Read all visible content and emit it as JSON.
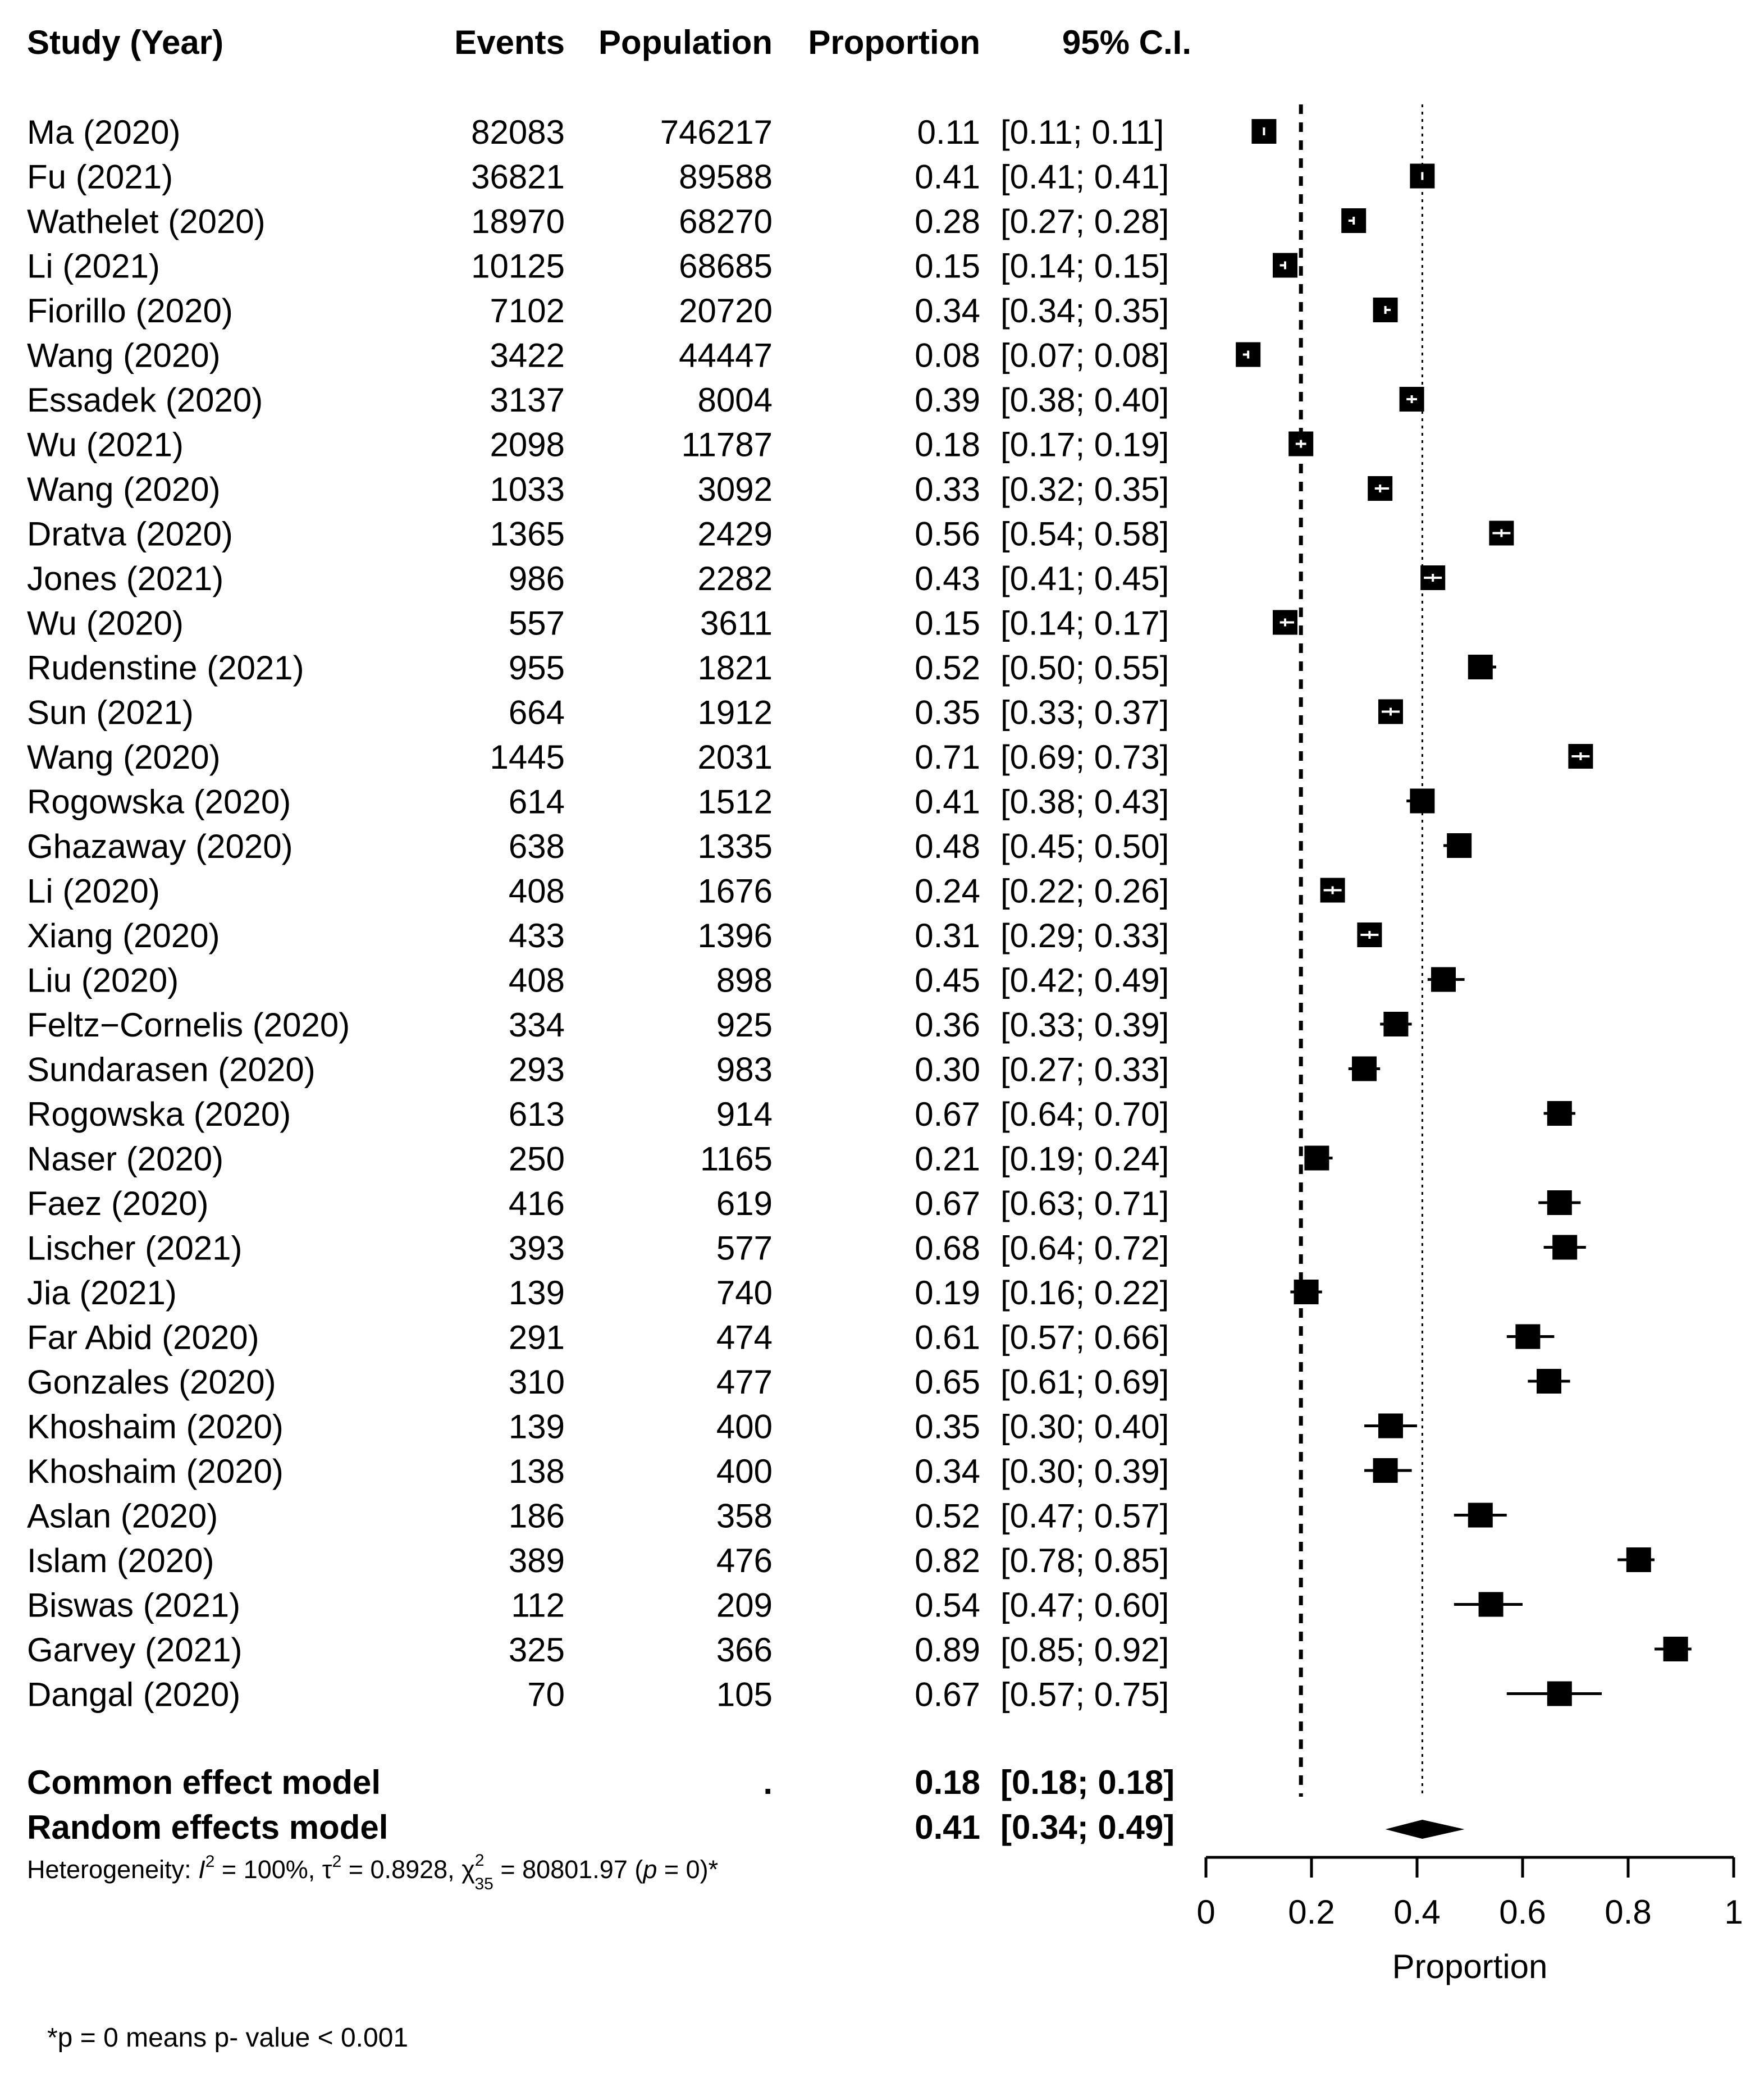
{
  "chart_data": {
    "type": "forest",
    "title": "",
    "columns": {
      "study": "Study (Year)",
      "events": "Events",
      "population": "Population",
      "proportion": "Proportion",
      "ci": "95% C.I."
    },
    "studies": [
      {
        "label": "Ma (2020)",
        "events": "82083",
        "population": "746217",
        "prop": 0.11,
        "lo": 0.11,
        "hi": 0.11,
        "prop_text": "0.11",
        "ci_text": "[0.11; 0.11]",
        "weight": 1
      },
      {
        "label": "Fu (2021)",
        "events": "36821",
        "population": "89588",
        "prop": 0.41,
        "lo": 0.41,
        "hi": 0.41,
        "prop_text": "0.41",
        "ci_text": "[0.41; 0.41]",
        "weight": 1
      },
      {
        "label": "Wathelet (2020)",
        "events": "18970",
        "population": "68270",
        "prop": 0.28,
        "lo": 0.27,
        "hi": 0.28,
        "prop_text": "0.28",
        "ci_text": "[0.27; 0.28]",
        "weight": 1
      },
      {
        "label": "Li (2021)",
        "events": "10125",
        "population": "68685",
        "prop": 0.15,
        "lo": 0.14,
        "hi": 0.15,
        "prop_text": "0.15",
        "ci_text": "[0.14; 0.15]",
        "weight": 1
      },
      {
        "label": "Fiorillo (2020)",
        "events": "7102",
        "population": "20720",
        "prop": 0.34,
        "lo": 0.34,
        "hi": 0.35,
        "prop_text": "0.34",
        "ci_text": "[0.34; 0.35]",
        "weight": 1
      },
      {
        "label": "Wang (2020)",
        "events": "3422",
        "population": "44447",
        "prop": 0.08,
        "lo": 0.07,
        "hi": 0.08,
        "prop_text": "0.08",
        "ci_text": "[0.07; 0.08]",
        "weight": 1
      },
      {
        "label": "Essadek (2020)",
        "events": "3137",
        "population": "8004",
        "prop": 0.39,
        "lo": 0.38,
        "hi": 0.4,
        "prop_text": "0.39",
        "ci_text": "[0.38; 0.40]",
        "weight": 1
      },
      {
        "label": "Wu (2021)",
        "events": "2098",
        "population": "11787",
        "prop": 0.18,
        "lo": 0.17,
        "hi": 0.19,
        "prop_text": "0.18",
        "ci_text": "[0.17; 0.19]",
        "weight": 1
      },
      {
        "label": "Wang (2020)",
        "events": "1033",
        "population": "3092",
        "prop": 0.33,
        "lo": 0.32,
        "hi": 0.35,
        "prop_text": "0.33",
        "ci_text": "[0.32; 0.35]",
        "weight": 1
      },
      {
        "label": "Dratva (2020)",
        "events": "1365",
        "population": "2429",
        "prop": 0.56,
        "lo": 0.54,
        "hi": 0.58,
        "prop_text": "0.56",
        "ci_text": "[0.54; 0.58]",
        "weight": 1
      },
      {
        "label": "Jones (2021)",
        "events": "986",
        "population": "2282",
        "prop": 0.43,
        "lo": 0.41,
        "hi": 0.45,
        "prop_text": "0.43",
        "ci_text": "[0.41; 0.45]",
        "weight": 1
      },
      {
        "label": "Wu (2020)",
        "events": "557",
        "population": "3611",
        "prop": 0.15,
        "lo": 0.14,
        "hi": 0.17,
        "prop_text": "0.15",
        "ci_text": "[0.14; 0.17]",
        "weight": 1
      },
      {
        "label": "Rudenstine (2021)",
        "events": "955",
        "population": "1821",
        "prop": 0.52,
        "lo": 0.5,
        "hi": 0.55,
        "prop_text": "0.52",
        "ci_text": "[0.50; 0.55]",
        "weight": 1
      },
      {
        "label": "Sun (2021)",
        "events": "664",
        "population": "1912",
        "prop": 0.35,
        "lo": 0.33,
        "hi": 0.37,
        "prop_text": "0.35",
        "ci_text": "[0.33; 0.37]",
        "weight": 1
      },
      {
        "label": "Wang (2020)",
        "events": "1445",
        "population": "2031",
        "prop": 0.71,
        "lo": 0.69,
        "hi": 0.73,
        "prop_text": "0.71",
        "ci_text": "[0.69; 0.73]",
        "weight": 1
      },
      {
        "label": "Rogowska (2020)",
        "events": "614",
        "population": "1512",
        "prop": 0.41,
        "lo": 0.38,
        "hi": 0.43,
        "prop_text": "0.41",
        "ci_text": "[0.38; 0.43]",
        "weight": 1
      },
      {
        "label": "Ghazaway (2020)",
        "events": "638",
        "population": "1335",
        "prop": 0.48,
        "lo": 0.45,
        "hi": 0.5,
        "prop_text": "0.48",
        "ci_text": "[0.45; 0.50]",
        "weight": 1
      },
      {
        "label": "Li (2020)",
        "events": "408",
        "population": "1676",
        "prop": 0.24,
        "lo": 0.22,
        "hi": 0.26,
        "prop_text": "0.24",
        "ci_text": "[0.22; 0.26]",
        "weight": 1
      },
      {
        "label": "Xiang (2020)",
        "events": "433",
        "population": "1396",
        "prop": 0.31,
        "lo": 0.29,
        "hi": 0.33,
        "prop_text": "0.31",
        "ci_text": "[0.29; 0.33]",
        "weight": 1
      },
      {
        "label": "Liu (2020)",
        "events": "408",
        "population": "898",
        "prop": 0.45,
        "lo": 0.42,
        "hi": 0.49,
        "prop_text": "0.45",
        "ci_text": "[0.42; 0.49]",
        "weight": 1
      },
      {
        "label": "Feltz−Cornelis (2020)",
        "events": "334",
        "population": "925",
        "prop": 0.36,
        "lo": 0.33,
        "hi": 0.39,
        "prop_text": "0.36",
        "ci_text": "[0.33; 0.39]",
        "weight": 1
      },
      {
        "label": "Sundarasen (2020)",
        "events": "293",
        "population": "983",
        "prop": 0.3,
        "lo": 0.27,
        "hi": 0.33,
        "prop_text": "0.30",
        "ci_text": "[0.27; 0.33]",
        "weight": 1
      },
      {
        "label": "Rogowska (2020)",
        "events": "613",
        "population": "914",
        "prop": 0.67,
        "lo": 0.64,
        "hi": 0.7,
        "prop_text": "0.67",
        "ci_text": "[0.64; 0.70]",
        "weight": 1
      },
      {
        "label": "Naser (2020)",
        "events": "250",
        "population": "1165",
        "prop": 0.21,
        "lo": 0.19,
        "hi": 0.24,
        "prop_text": "0.21",
        "ci_text": "[0.19; 0.24]",
        "weight": 1
      },
      {
        "label": "Faez (2020)",
        "events": "416",
        "population": "619",
        "prop": 0.67,
        "lo": 0.63,
        "hi": 0.71,
        "prop_text": "0.67",
        "ci_text": "[0.63; 0.71]",
        "weight": 1
      },
      {
        "label": "Lischer (2021)",
        "events": "393",
        "population": "577",
        "prop": 0.68,
        "lo": 0.64,
        "hi": 0.72,
        "prop_text": "0.68",
        "ci_text": "[0.64; 0.72]",
        "weight": 1
      },
      {
        "label": "Jia (2021)",
        "events": "139",
        "population": "740",
        "prop": 0.19,
        "lo": 0.16,
        "hi": 0.22,
        "prop_text": "0.19",
        "ci_text": "[0.16; 0.22]",
        "weight": 1
      },
      {
        "label": "Far Abid (2020)",
        "events": "291",
        "population": "474",
        "prop": 0.61,
        "lo": 0.57,
        "hi": 0.66,
        "prop_text": "0.61",
        "ci_text": "[0.57; 0.66]",
        "weight": 1
      },
      {
        "label": "Gonzales (2020)",
        "events": "310",
        "population": "477",
        "prop": 0.65,
        "lo": 0.61,
        "hi": 0.69,
        "prop_text": "0.65",
        "ci_text": "[0.61; 0.69]",
        "weight": 1
      },
      {
        "label": "Khoshaim (2020)",
        "events": "139",
        "population": "400",
        "prop": 0.35,
        "lo": 0.3,
        "hi": 0.4,
        "prop_text": "0.35",
        "ci_text": "[0.30; 0.40]",
        "weight": 1
      },
      {
        "label": "Khoshaim (2020)",
        "events": "138",
        "population": "400",
        "prop": 0.34,
        "lo": 0.3,
        "hi": 0.39,
        "prop_text": "0.34",
        "ci_text": "[0.30; 0.39]",
        "weight": 1
      },
      {
        "label": "Aslan (2020)",
        "events": "186",
        "population": "358",
        "prop": 0.52,
        "lo": 0.47,
        "hi": 0.57,
        "prop_text": "0.52",
        "ci_text": "[0.47; 0.57]",
        "weight": 1
      },
      {
        "label": "Islam (2020)",
        "events": "389",
        "population": "476",
        "prop": 0.82,
        "lo": 0.78,
        "hi": 0.85,
        "prop_text": "0.82",
        "ci_text": "[0.78; 0.85]",
        "weight": 1
      },
      {
        "label": "Biswas (2021)",
        "events": "112",
        "population": "209",
        "prop": 0.54,
        "lo": 0.47,
        "hi": 0.6,
        "prop_text": "0.54",
        "ci_text": "[0.47; 0.60]",
        "weight": 1
      },
      {
        "label": "Garvey (2021)",
        "events": "325",
        "population": "366",
        "prop": 0.89,
        "lo": 0.85,
        "hi": 0.92,
        "prop_text": "0.89",
        "ci_text": "[0.85; 0.92]",
        "weight": 1
      },
      {
        "label": "Dangal (2020)",
        "events": "70",
        "population": "105",
        "prop": 0.67,
        "lo": 0.57,
        "hi": 0.75,
        "prop_text": "0.67",
        "ci_text": "[0.57; 0.75]",
        "weight": 1
      }
    ],
    "common_effect": {
      "label": "Common effect model",
      "population": ".",
      "prop": 0.18,
      "lo": 0.18,
      "hi": 0.18,
      "prop_text": "0.18",
      "ci_text": "[0.18; 0.18]"
    },
    "random_effects": {
      "label": "Random effects model",
      "prop": 0.41,
      "lo": 0.34,
      "hi": 0.49,
      "prop_text": "0.41",
      "ci_text": "[0.34; 0.49]"
    },
    "heterogeneity": {
      "prefix": "Heterogeneity: ",
      "i2_symbol": "I",
      "i2_sup": "2",
      "i2_value": " = 100%, ",
      "tau_symbol": "τ",
      "tau_sup": "2",
      "tau_value": " = 0.8928, ",
      "chi_symbol": "χ",
      "chi_sup": "2",
      "chi_sub": "35",
      "chi_value": " = 80801.97 (",
      "p_symbol": "p",
      "p_value": " = 0)*"
    },
    "xaxis": {
      "label": "Proportion",
      "min": 0,
      "max": 1,
      "ticks": [
        0,
        0.2,
        0.4,
        0.6,
        0.8,
        1
      ],
      "tick_labels": [
        "0",
        "0.2",
        "0.4",
        "0.6",
        "0.8",
        "1"
      ]
    },
    "reference_lines": {
      "common_effect": 0.18,
      "random_effects": 0.41
    }
  },
  "footnote": "*p = 0 means p- value < 0.001"
}
